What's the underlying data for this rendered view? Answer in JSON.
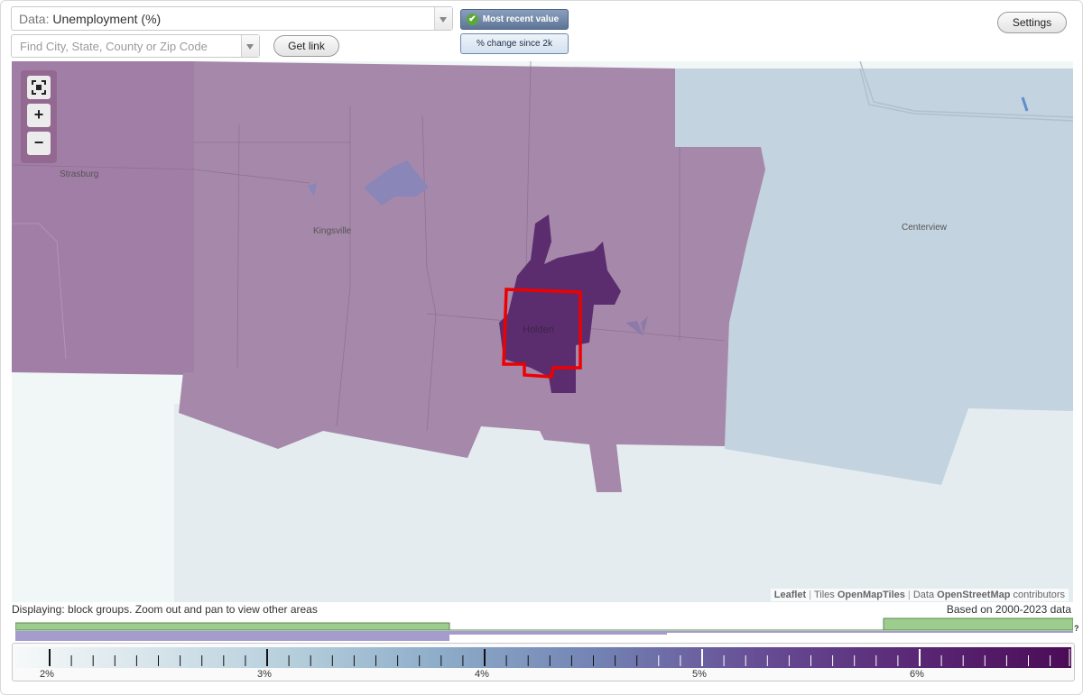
{
  "toolbar": {
    "data_prefix": "Data:",
    "data_value": "Unemployment (%)",
    "search_placeholder": "Find City, State, County or Zip Code",
    "get_link_label": "Get link",
    "settings_label": "Settings",
    "mode_recent_label": "Most recent value",
    "mode_change_label": "% change since 2k"
  },
  "map": {
    "places": [
      "Strasburg",
      "Kingsville",
      "Holden",
      "Centerview"
    ],
    "zoom": {
      "fit_icon": "fullscreen-icon",
      "in_label": "+",
      "out_label": "−"
    },
    "attribution": {
      "leaflet": "Leaflet",
      "tiles_prefix": "Tiles",
      "tiles_provider": "OpenMapTiles",
      "data_prefix": "Data",
      "data_provider": "OpenStreetMap",
      "data_suffix": "contributors"
    },
    "colors": {
      "dark_purple": "#5b2d6e",
      "mid_purple": "#a688aa",
      "highlight_outline": "#ee0000",
      "light_blue": "#cfdde6"
    }
  },
  "legend": {
    "displaying": "Displaying: block groups. Zoom out and pan to view other areas",
    "based_on": "Based on 2000-2023 data",
    "help": "?",
    "tick_labels": [
      "2%",
      "3%",
      "4%",
      "5%",
      "6%"
    ]
  }
}
